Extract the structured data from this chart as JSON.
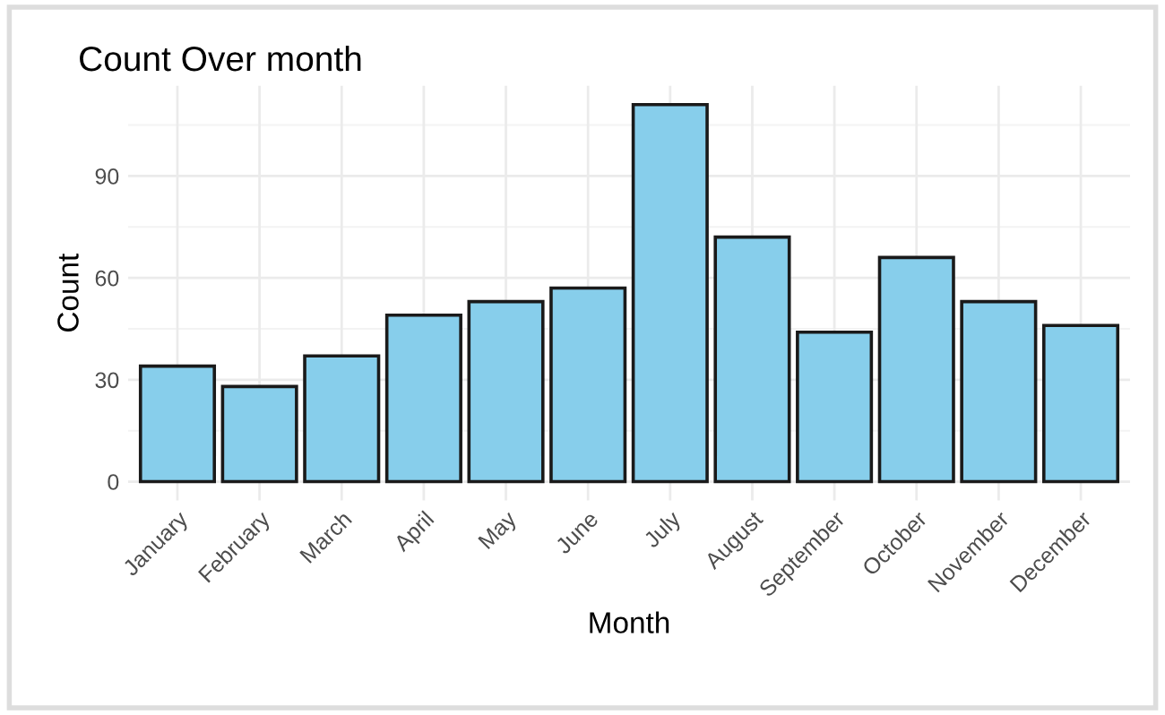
{
  "chart_data": {
    "type": "bar",
    "title": "Count Over month",
    "xlabel": "Month",
    "ylabel": "Count",
    "categories": [
      "January",
      "February",
      "March",
      "April",
      "May",
      "June",
      "July",
      "August",
      "September",
      "October",
      "November",
      "December"
    ],
    "values": [
      34,
      28,
      37,
      49,
      53,
      57,
      111,
      72,
      44,
      66,
      53,
      46
    ],
    "color": "#87ceeb",
    "ylim": [
      -5.55,
      116.55
    ],
    "yticks": [
      0,
      30,
      60,
      90
    ],
    "grid": true
  }
}
